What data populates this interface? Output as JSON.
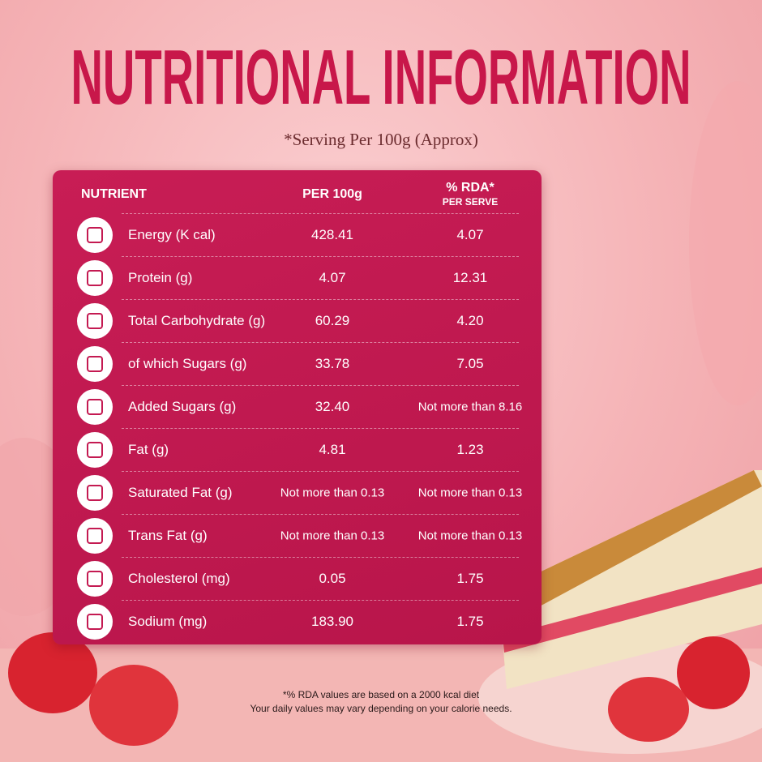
{
  "title": "NUTRITIONAL INFORMATION",
  "subtitle": "*Serving Per 100g (Approx)",
  "table": {
    "headers": [
      "NUTRIENT",
      "PER 100g",
      "% RDA*"
    ],
    "rda_subheader": "PER SERVE",
    "rows": [
      [
        "Energy (K cal)",
        "428.41",
        "4.07"
      ],
      [
        "Protein (g)",
        "4.07",
        "12.31"
      ],
      [
        "Total Carbohydrate (g)",
        "60.29",
        "4.20"
      ],
      [
        "of which Sugars (g)",
        "33.78",
        "7.05"
      ],
      [
        "Added Sugars (g)",
        "32.40",
        "Not more than 8.16"
      ],
      [
        "Fat (g)",
        "4.81",
        "1.23"
      ],
      [
        "Saturated Fat (g)",
        "Not more than 0.13",
        "Not more than 0.13"
      ],
      [
        "Trans Fat (g)",
        "Not more than 0.13",
        "Not more than 0.13"
      ],
      [
        "Cholesterol (mg)",
        "0.05",
        "1.75"
      ],
      [
        "Sodium (mg)",
        "183.90",
        "1.75"
      ]
    ]
  },
  "footnote": [
    "*% RDA values are based on a 2000 kcal diet",
    "Your daily values may vary depending on your calorie needs."
  ]
}
